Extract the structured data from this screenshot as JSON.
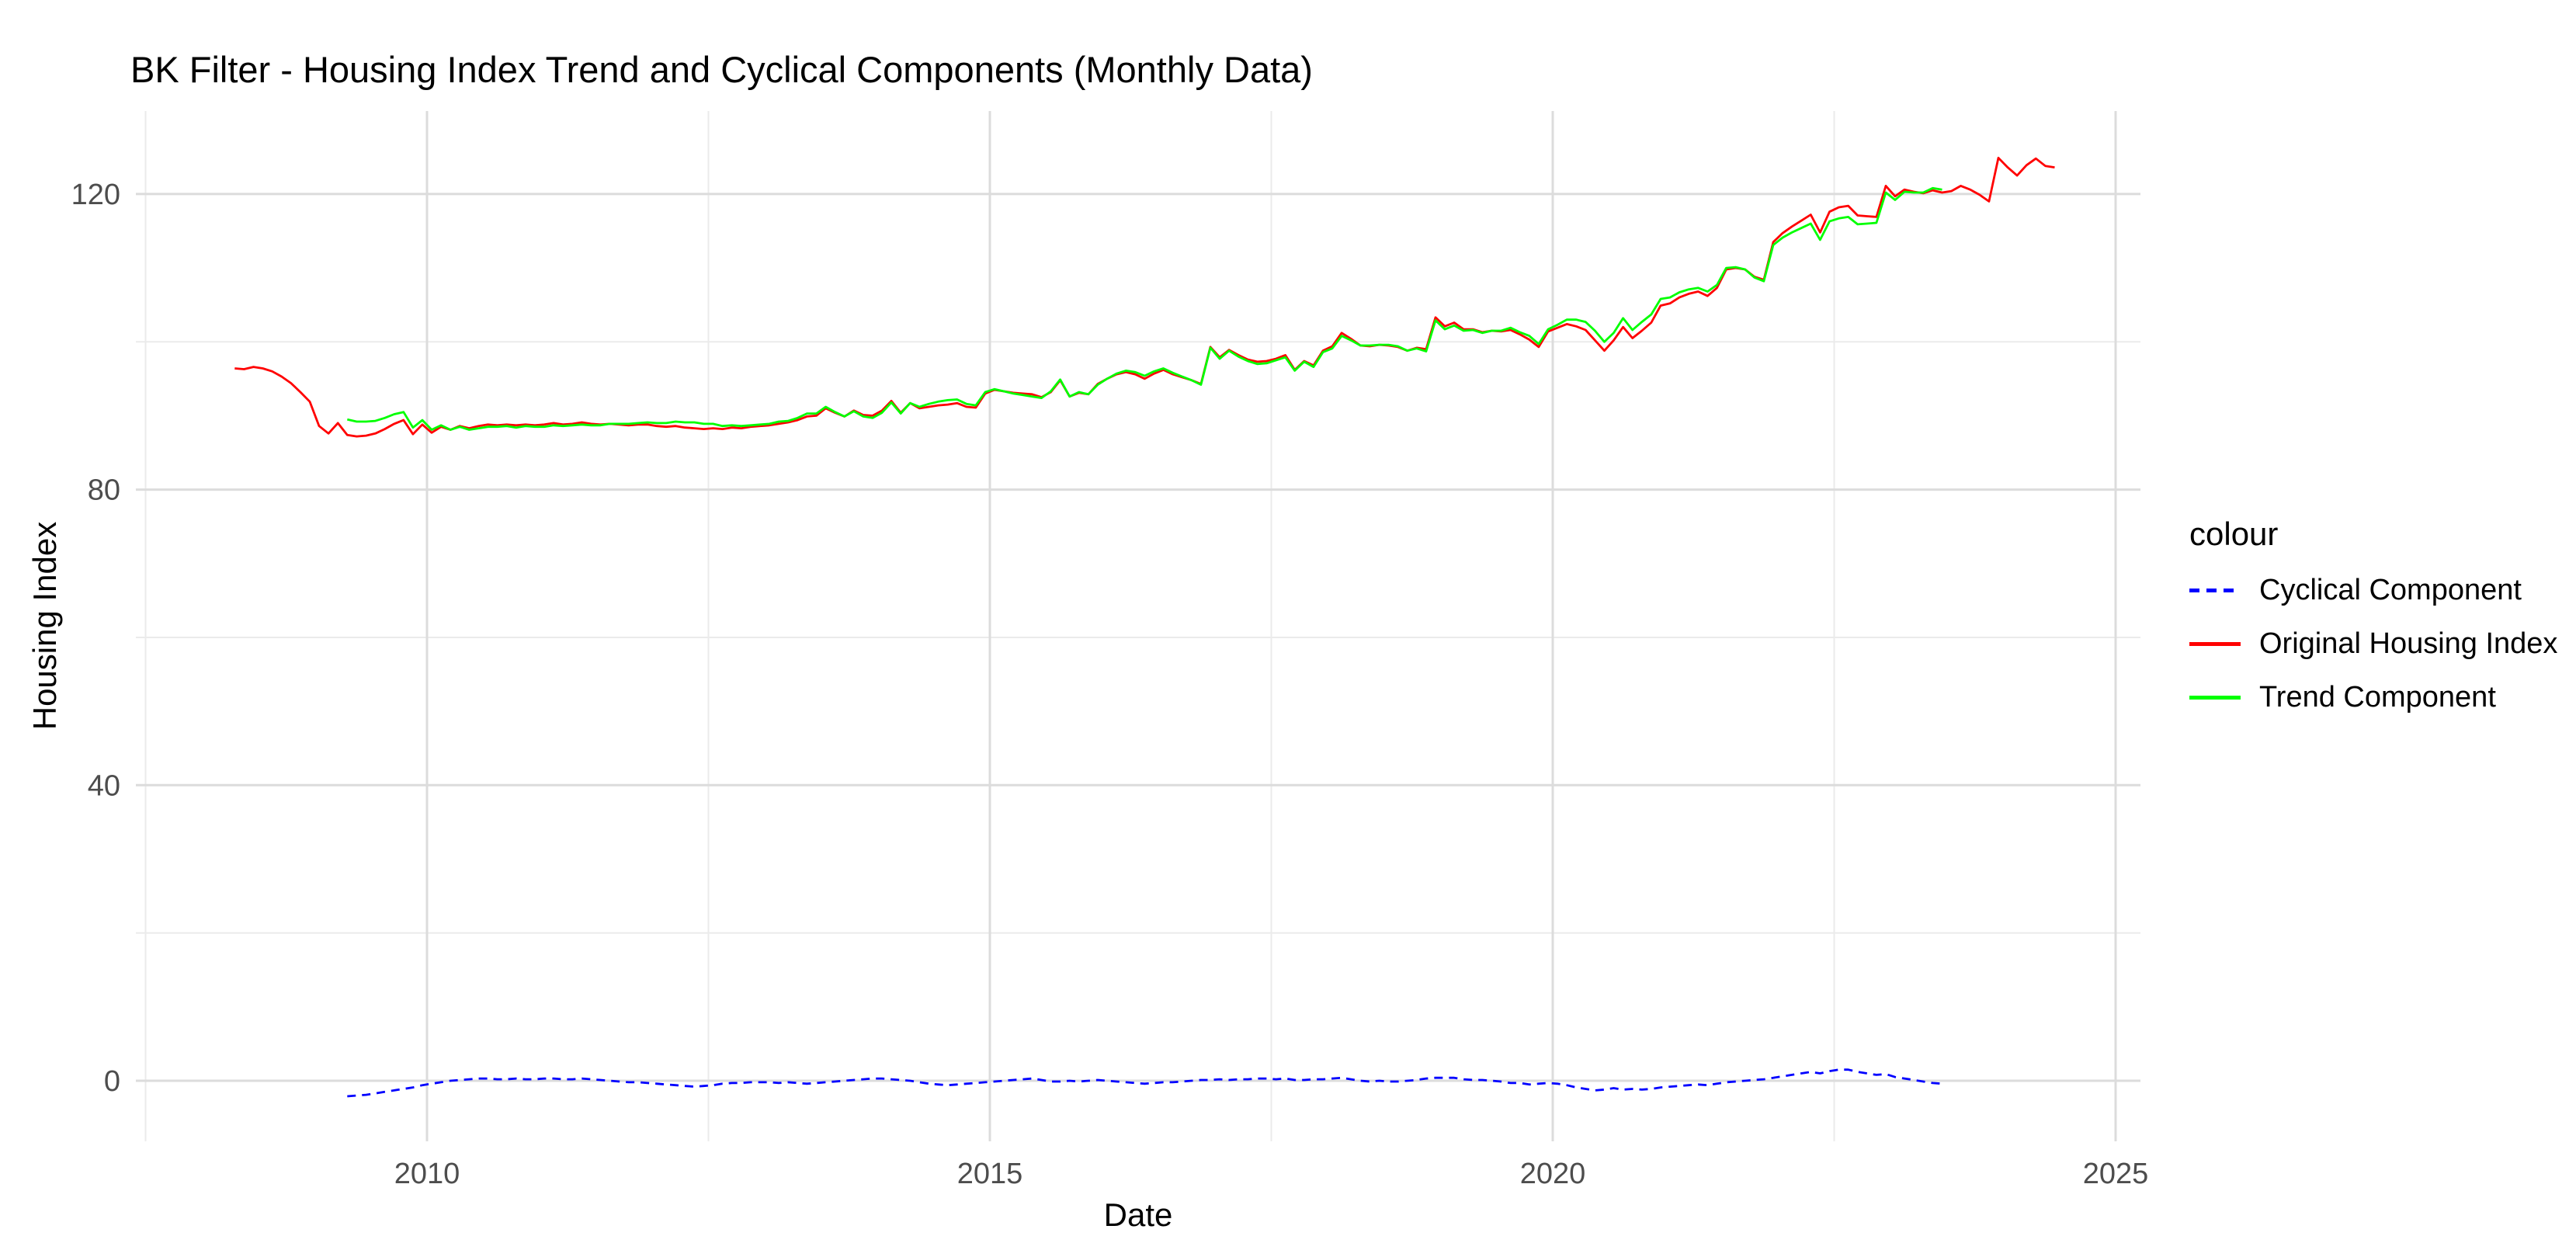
{
  "page": {
    "background": "#FFFFFF"
  },
  "chart_data": {
    "type": "line",
    "title": "BK Filter - Housing Index Trend and Cyclical Components (Monthly Data)",
    "xlabel": "Date",
    "ylabel": "Housing Index",
    "legend_title": "colour",
    "legend_position": "right",
    "grid": true,
    "x_ticks": [
      2010,
      2015,
      2020,
      2025
    ],
    "x_minor_ticks": [
      2007.5,
      2012.5,
      2017.5,
      2022.5
    ],
    "y_ticks": [
      0,
      40,
      80,
      120
    ],
    "y_minor_ticks": [
      20,
      60,
      100
    ],
    "xlim": [
      2007.4,
      2025.2
    ],
    "ylim": [
      -8.2,
      131.6
    ],
    "frequency": "monthly",
    "colors": {
      "grid_major": "#DCDCDC",
      "grid_minor": "#EBEBEB",
      "tick_label": "#4D4D4D",
      "background": "#FFFFFF"
    },
    "series": [
      {
        "name": "Cyclical Component",
        "color": "#0000FF",
        "line_style": "dashed",
        "start": "2009-04",
        "end": "2023-06",
        "values": [
          -2.1,
          -2.0,
          -1.9,
          -1.7,
          -1.5,
          -1.3,
          -1.1,
          -0.9,
          -0.6,
          -0.4,
          -0.2,
          0.0,
          0.1,
          0.2,
          0.3,
          0.3,
          0.2,
          0.2,
          0.3,
          0.2,
          0.2,
          0.3,
          0.3,
          0.2,
          0.2,
          0.3,
          0.2,
          0.1,
          0.0,
          -0.1,
          -0.2,
          -0.2,
          -0.3,
          -0.4,
          -0.5,
          -0.6,
          -0.7,
          -0.8,
          -0.7,
          -0.6,
          -0.4,
          -0.3,
          -0.3,
          -0.2,
          -0.2,
          -0.2,
          -0.3,
          -0.2,
          -0.3,
          -0.4,
          -0.3,
          -0.2,
          -0.1,
          0.0,
          0.1,
          0.2,
          0.3,
          0.3,
          0.2,
          0.1,
          0.0,
          -0.2,
          -0.4,
          -0.5,
          -0.6,
          -0.5,
          -0.4,
          -0.3,
          -0.2,
          -0.1,
          0.0,
          0.1,
          0.2,
          0.3,
          0.1,
          -0.1,
          -0.1,
          0.0,
          -0.1,
          0.0,
          0.1,
          0.0,
          -0.1,
          -0.2,
          -0.3,
          -0.4,
          -0.3,
          -0.2,
          -0.2,
          -0.1,
          0.0,
          0.1,
          0.1,
          0.2,
          0.1,
          0.2,
          0.2,
          0.3,
          0.3,
          0.2,
          0.3,
          0.1,
          0.1,
          0.2,
          0.2,
          0.3,
          0.4,
          0.2,
          0.0,
          -0.1,
          0.0,
          -0.1,
          -0.1,
          0.0,
          0.1,
          0.3,
          0.4,
          0.4,
          0.4,
          0.2,
          0.1,
          0.1,
          0.0,
          -0.1,
          -0.3,
          -0.3,
          -0.5,
          -0.4,
          -0.3,
          -0.4,
          -0.6,
          -0.9,
          -1.1,
          -1.3,
          -1.2,
          -1.0,
          -1.2,
          -1.1,
          -1.2,
          -1.1,
          -0.9,
          -0.8,
          -0.7,
          -0.6,
          -0.5,
          -0.6,
          -0.4,
          -0.2,
          -0.1,
          0.0,
          0.1,
          0.2,
          0.4,
          0.6,
          0.8,
          1.0,
          1.2,
          1.0,
          1.3,
          1.5,
          1.5,
          1.2,
          1.0,
          0.8,
          0.9,
          0.5,
          0.3,
          0.1,
          -0.1,
          -0.3,
          -0.4
        ]
      },
      {
        "name": "Original Housing Index",
        "color": "#FF0000",
        "line_style": "solid",
        "start": "2008-04",
        "end": "2024-06",
        "values": [
          96.4,
          96.3,
          96.6,
          96.4,
          96.0,
          95.3,
          94.4,
          93.2,
          91.9,
          88.6,
          87.6,
          89.0,
          87.4,
          87.2,
          87.3,
          87.6,
          88.2,
          88.9,
          89.4,
          87.5,
          88.8,
          87.7,
          88.5,
          88.1,
          88.6,
          88.3,
          88.6,
          88.8,
          88.7,
          88.8,
          88.7,
          88.8,
          88.7,
          88.8,
          89.0,
          88.8,
          88.9,
          89.1,
          88.9,
          88.8,
          88.9,
          88.8,
          88.7,
          88.8,
          88.8,
          88.6,
          88.5,
          88.6,
          88.4,
          88.3,
          88.2,
          88.3,
          88.2,
          88.4,
          88.3,
          88.5,
          88.6,
          88.7,
          88.9,
          89.1,
          89.4,
          89.9,
          90.0,
          91.0,
          90.4,
          89.9,
          90.7,
          90.1,
          90.0,
          90.7,
          92.0,
          90.4,
          91.7,
          91.0,
          91.2,
          91.4,
          91.5,
          91.7,
          91.2,
          91.1,
          93.0,
          93.5,
          93.3,
          93.1,
          93.0,
          92.9,
          92.5,
          93.2,
          94.8,
          92.6,
          93.1,
          92.9,
          94.3,
          95.0,
          95.6,
          95.9,
          95.6,
          95.0,
          95.7,
          96.2,
          95.6,
          95.2,
          94.8,
          94.3,
          99.3,
          97.9,
          98.9,
          98.2,
          97.6,
          97.3,
          97.4,
          97.7,
          98.2,
          96.2,
          97.4,
          96.8,
          98.8,
          99.4,
          101.2,
          100.4,
          99.5,
          99.4,
          99.6,
          99.5,
          99.3,
          98.8,
          99.2,
          99.0,
          103.3,
          102.1,
          102.6,
          101.7,
          101.7,
          101.3,
          101.5,
          101.4,
          101.6,
          101.0,
          100.3,
          99.3,
          101.4,
          101.9,
          102.4,
          102.1,
          101.6,
          100.2,
          98.8,
          100.2,
          102.0,
          100.5,
          101.5,
          102.6,
          104.9,
          105.2,
          106.0,
          106.5,
          106.8,
          106.2,
          107.3,
          109.8,
          110.0,
          109.8,
          108.8,
          108.4,
          113.5,
          114.7,
          115.6,
          116.4,
          117.2,
          114.8,
          117.6,
          118.2,
          118.4,
          117.1,
          117.0,
          116.9,
          121.1,
          119.7,
          120.6,
          120.3,
          120.1,
          120.5,
          120.2,
          120.4,
          121.1,
          120.6,
          119.9,
          119.0,
          124.9,
          123.6,
          122.5,
          123.9,
          124.8,
          123.8,
          123.6
        ]
      },
      {
        "name": "Trend Component",
        "color": "#00FF00",
        "line_style": "solid",
        "start": "2009-04",
        "end": "2023-06",
        "values": [
          89.5,
          89.2,
          89.2,
          89.3,
          89.7,
          90.2,
          90.5,
          88.4,
          89.4,
          88.1,
          88.7,
          88.1,
          88.5,
          88.1,
          88.3,
          88.5,
          88.5,
          88.6,
          88.4,
          88.6,
          88.5,
          88.5,
          88.7,
          88.6,
          88.7,
          88.8,
          88.7,
          88.7,
          88.9,
          88.9,
          88.9,
          89.0,
          89.1,
          89.0,
          89.0,
          89.2,
          89.1,
          89.1,
          88.9,
          88.9,
          88.6,
          88.7,
          88.6,
          88.7,
          88.8,
          88.9,
          89.2,
          89.3,
          89.7,
          90.3,
          90.3,
          91.2,
          90.5,
          89.9,
          90.6,
          89.9,
          89.7,
          90.4,
          91.8,
          90.3,
          91.7,
          91.2,
          91.6,
          91.9,
          92.1,
          92.2,
          91.6,
          91.4,
          93.2,
          93.6,
          93.3,
          93.0,
          92.8,
          92.6,
          92.4,
          93.3,
          94.9,
          92.6,
          93.2,
          92.9,
          94.2,
          95.0,
          95.7,
          96.1,
          95.9,
          95.4,
          96.0,
          96.4,
          95.8,
          95.3,
          94.8,
          94.2,
          99.2,
          97.7,
          98.8,
          98.0,
          97.4,
          97.0,
          97.1,
          97.5,
          97.9,
          96.1,
          97.3,
          96.6,
          98.6,
          99.1,
          100.8,
          100.2,
          99.5,
          99.5,
          99.6,
          99.6,
          99.4,
          98.8,
          99.1,
          98.7,
          102.9,
          101.7,
          102.2,
          101.5,
          101.6,
          101.2,
          101.5,
          101.5,
          101.9,
          101.3,
          100.8,
          99.7,
          101.7,
          102.3,
          103.0,
          103.0,
          102.7,
          101.5,
          100.0,
          101.2,
          103.2,
          101.6,
          102.7,
          103.7,
          105.8,
          106.0,
          106.7,
          107.1,
          107.3,
          106.8,
          107.7,
          110.0,
          110.1,
          109.8,
          108.7,
          108.2,
          113.1,
          114.1,
          114.8,
          115.4,
          116.0,
          113.8,
          116.3,
          116.7,
          116.9,
          115.9,
          116.0,
          116.1,
          120.2,
          119.2,
          120.3,
          120.2,
          120.2,
          120.8,
          120.6
        ]
      }
    ]
  }
}
